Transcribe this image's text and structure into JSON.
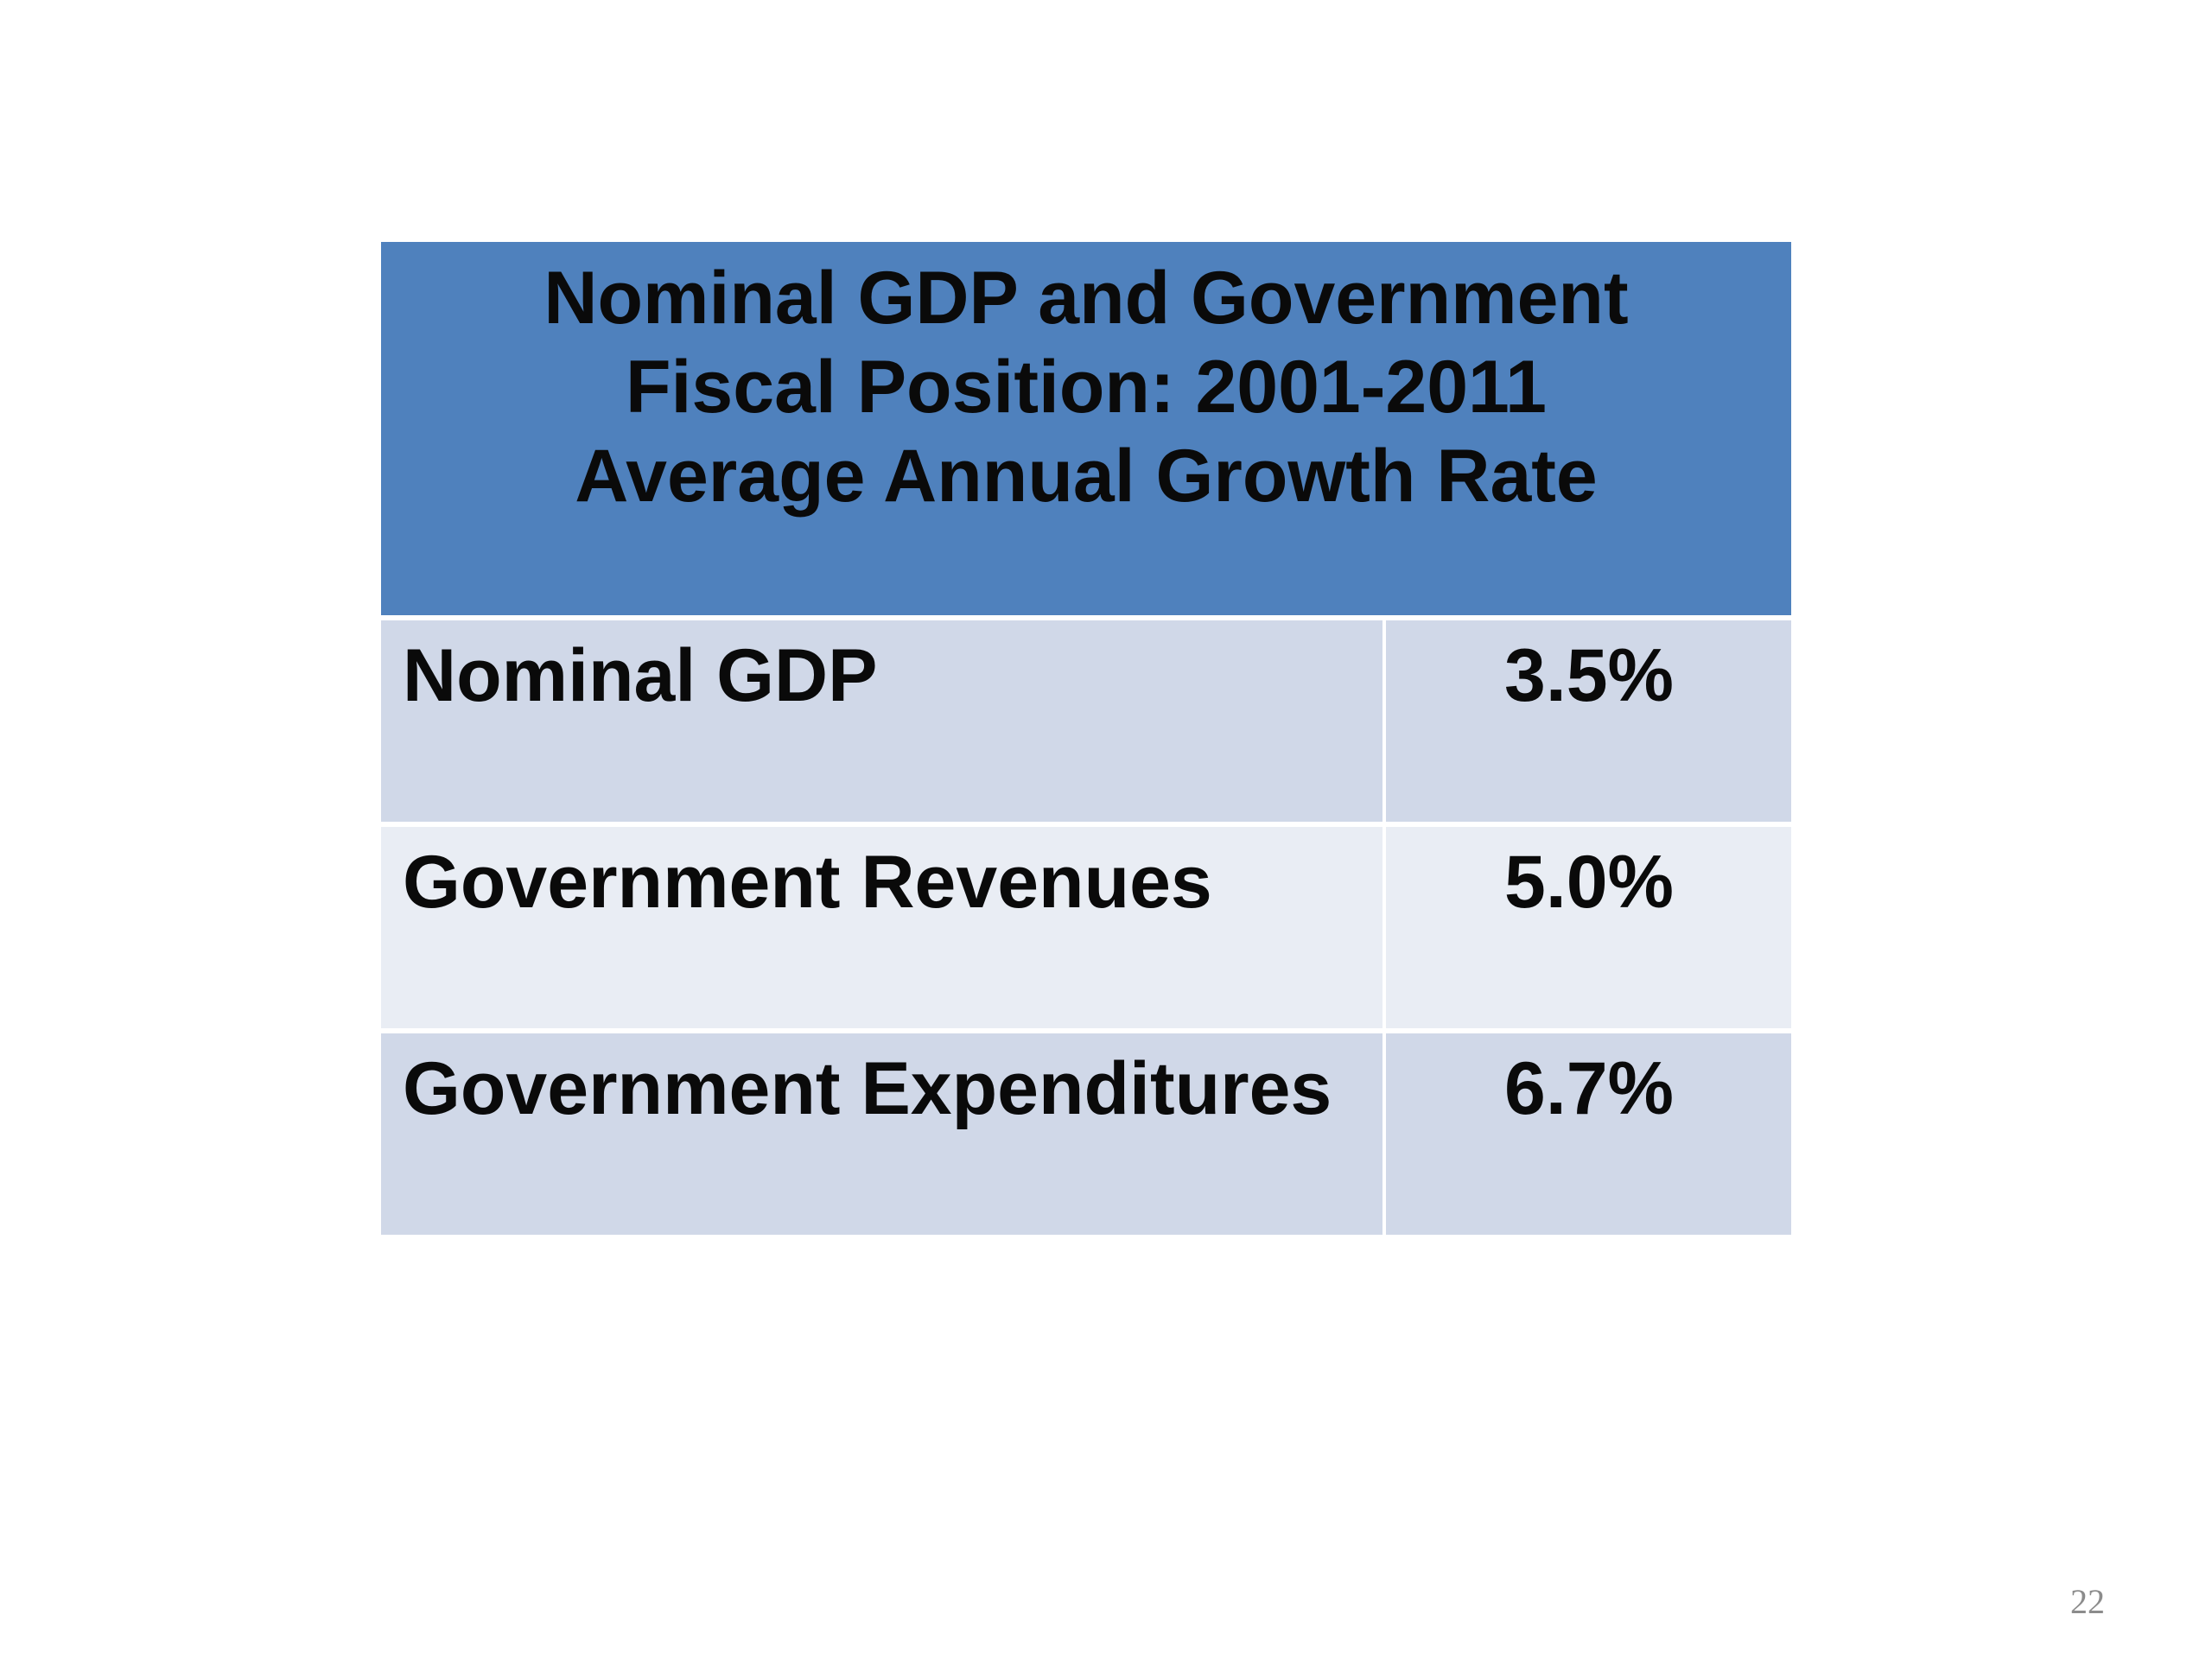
{
  "table": {
    "header_lines": [
      "Nominal GDP and Government",
      "Fiscal Position: 2001-2011",
      "Average Annual Growth Rate"
    ],
    "rows": [
      {
        "label": "Nominal GDP",
        "value": "3.5%"
      },
      {
        "label": "Government Revenues",
        "value": "5.0%"
      },
      {
        "label": "Government Expenditures",
        "value": "6.7%"
      }
    ]
  },
  "slide": {
    "page_number": "22"
  },
  "colors": {
    "header_bg": "#4f81bd",
    "row_dark_bg": "#d0d8e8",
    "row_light_bg": "#e9edf4"
  }
}
